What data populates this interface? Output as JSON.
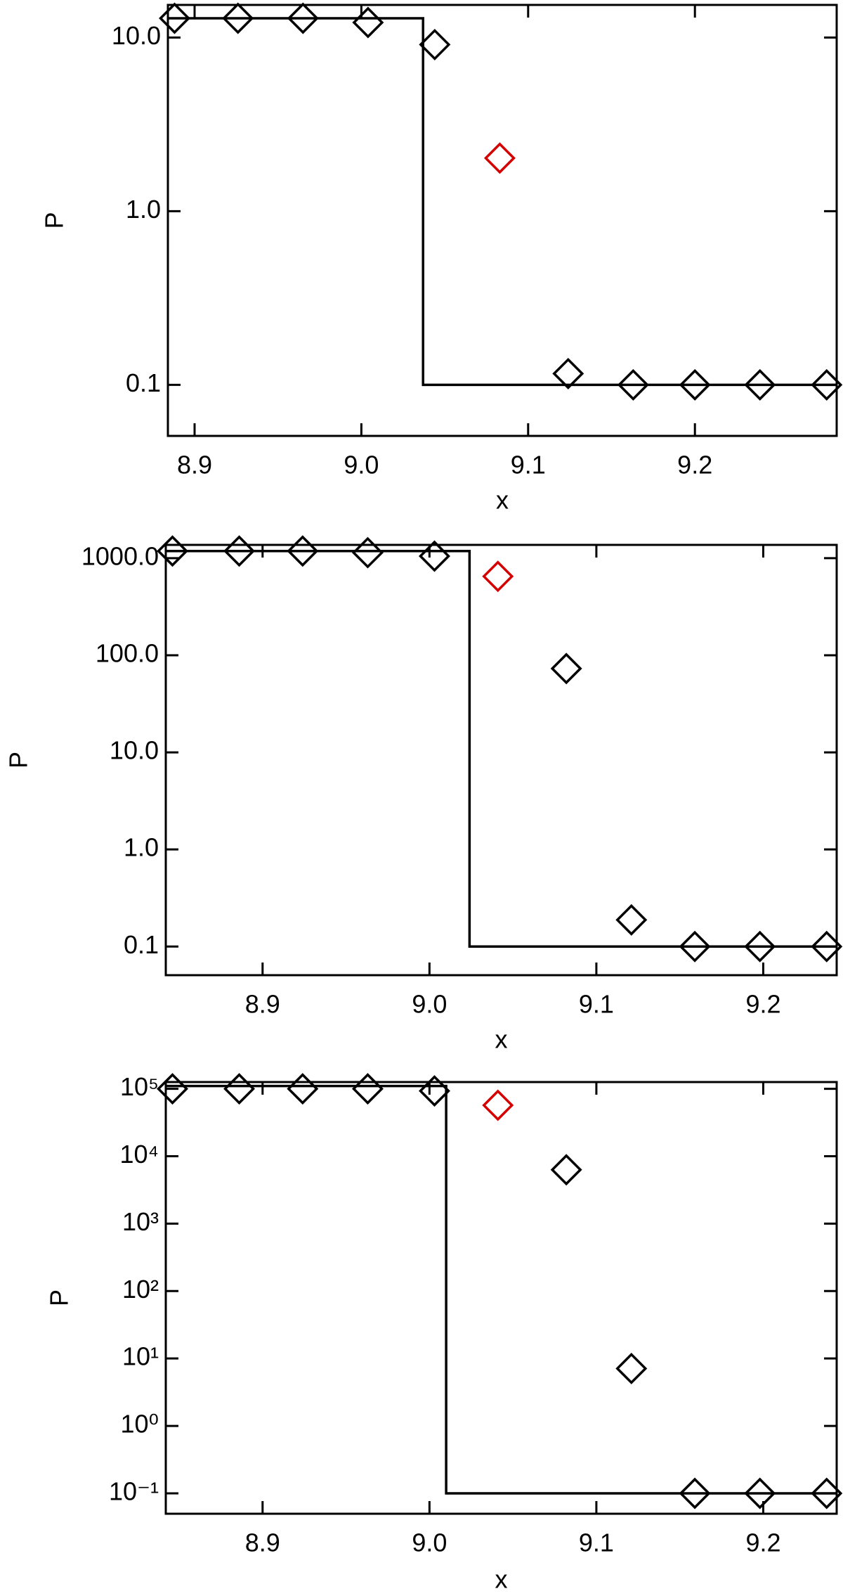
{
  "chart_data": [
    {
      "type": "scatter",
      "xlabel": "x",
      "ylabel": "P",
      "log_y": true,
      "xlim": [
        8.884,
        9.285
      ],
      "ylim": [
        0.0508,
        15.4
      ],
      "xticks": [
        8.9,
        {
          "value": 9.0,
          "label": "9.0"
        },
        9.1,
        9.2
      ],
      "yticks": [
        {
          "value": 10,
          "label": "10.0"
        },
        {
          "value": 1,
          "label": "1.0"
        },
        0.1
      ],
      "series": [
        {
          "kind": "line",
          "color": "#000000",
          "x": [
            8.884,
            9.037,
            9.037,
            9.285
          ],
          "values": [
            12.9,
            12.9,
            0.1,
            0.1
          ]
        },
        {
          "kind": "marker",
          "marker": "diamond",
          "colors": [
            "#000000",
            "#000000",
            "#000000",
            "#000000",
            "#000000",
            "#d40000",
            "#000000",
            "#000000",
            "#000000",
            "#000000",
            "#000000"
          ],
          "x": [
            8.888,
            8.926,
            8.965,
            9.004,
            9.044,
            9.083,
            9.124,
            9.163,
            9.2,
            9.239,
            9.279
          ],
          "values": [
            12.9,
            12.9,
            12.9,
            12.2,
            9.1,
            2.02,
            0.116,
            0.1,
            0.1,
            0.1,
            0.1
          ]
        }
      ]
    },
    {
      "type": "scatter",
      "xlabel": "x",
      "ylabel": "P",
      "log_y": true,
      "xlim": [
        8.842,
        9.244
      ],
      "ylim": [
        0.0507,
        1371
      ],
      "xticks": [
        8.9,
        {
          "value": 9.0,
          "label": "9.0"
        },
        9.1,
        9.2
      ],
      "yticks": [
        {
          "value": 1000,
          "label": "1000.0"
        },
        {
          "value": 100,
          "label": "100.0"
        },
        {
          "value": 10,
          "label": "10.0"
        },
        {
          "value": 1,
          "label": "1.0"
        },
        0.1
      ],
      "series": [
        {
          "kind": "line",
          "color": "#000000",
          "x": [
            8.842,
            9.024,
            9.024,
            9.244
          ],
          "values": [
            1185,
            1185,
            0.1,
            0.1
          ]
        },
        {
          "kind": "marker",
          "marker": "diamond",
          "colors": [
            "#000000",
            "#000000",
            "#000000",
            "#000000",
            "#000000",
            "#d40000",
            "#000000",
            "#000000",
            "#000000",
            "#000000",
            "#000000"
          ],
          "x": [
            8.846,
            8.886,
            8.924,
            8.963,
            9.003,
            9.041,
            9.082,
            9.121,
            9.159,
            9.198,
            9.238
          ],
          "values": [
            1185,
            1185,
            1185,
            1140,
            1050,
            650,
            73,
            0.188,
            0.1,
            0.1,
            0.1
          ]
        }
      ]
    },
    {
      "type": "scatter",
      "xlabel": "x",
      "ylabel": "P",
      "log_y": true,
      "xlim": [
        8.842,
        9.244
      ],
      "ylim": [
        0.0498,
        126000
      ],
      "xticks": [
        8.9,
        {
          "value": 9.0,
          "label": "9.0"
        },
        9.1,
        9.2
      ],
      "yticks": [
        {
          "value": 100000,
          "label": "10⁵"
        },
        {
          "value": 10000,
          "label": "10⁴"
        },
        {
          "value": 1000,
          "label": "10³"
        },
        {
          "value": 100,
          "label": "10²"
        },
        {
          "value": 10,
          "label": "10¹"
        },
        {
          "value": 1,
          "label": "10⁰"
        },
        {
          "value": 0.1,
          "label": "10⁻¹"
        }
      ],
      "series": [
        {
          "kind": "line",
          "color": "#000000",
          "x": [
            8.842,
            9.01,
            9.01,
            9.244
          ],
          "values": [
            110000,
            110000,
            0.1,
            0.1
          ]
        },
        {
          "kind": "marker",
          "marker": "diamond",
          "colors": [
            "#000000",
            "#000000",
            "#000000",
            "#000000",
            "#000000",
            "#d40000",
            "#000000",
            "#000000",
            "#000000",
            "#000000",
            "#000000"
          ],
          "x": [
            8.846,
            8.886,
            8.924,
            8.963,
            9.003,
            9.041,
            9.082,
            9.121,
            9.159,
            9.198,
            9.238
          ],
          "values": [
            100000,
            100000,
            100000,
            100000,
            93000,
            57000,
            6300,
            7.1,
            0.1,
            0.1,
            0.1
          ]
        }
      ]
    }
  ]
}
